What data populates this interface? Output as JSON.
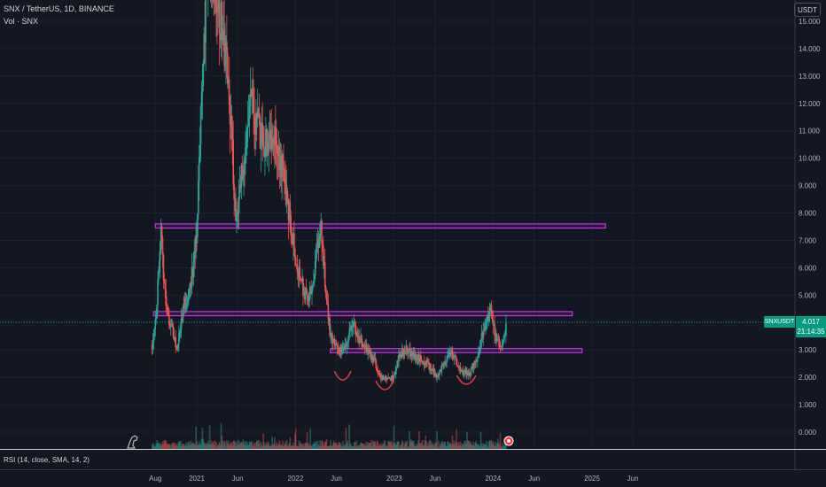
{
  "header": {
    "title": "SNX / TetherUS, 1D, BINANCE",
    "volume_label": "Vol · SNX",
    "currency": "USDT"
  },
  "price_badge": {
    "symbol": "SNXUSDT",
    "price": "4.017",
    "countdown": "21:14:35"
  },
  "rsi_label": "RSI (14, close, SMA, 14, 2)",
  "colors": {
    "background": "#131722",
    "up": "#26a69a",
    "down": "#ef5350",
    "zone": "#c930e8",
    "price_line": "#089981",
    "arc": "#f23645"
  },
  "chart_data": {
    "type": "candlestick",
    "y_axis": {
      "range": [
        -0.5,
        15.5
      ],
      "ticks": [
        "0.000",
        "1.000",
        "2.000",
        "3.000",
        "4.000",
        "5.000",
        "6.000",
        "7.000",
        "8.000",
        "9.000",
        "10.000",
        "11.000",
        "12.000",
        "13.000",
        "14.000",
        "15.000"
      ]
    },
    "x_axis": {
      "ticks": [
        "Aug",
        "2021",
        "Jun",
        "2022",
        "Jun",
        "2023",
        "Jun",
        "2024",
        "Jun",
        "2025",
        "Jun"
      ],
      "tick_dates": [
        "2020-08-01",
        "2021-01-01",
        "2021-06-01",
        "2022-01-01",
        "2022-06-01",
        "2023-01-01",
        "2023-06-01",
        "2024-01-01",
        "2024-06-01",
        "2025-01-01",
        "2025-06-01"
      ]
    },
    "price_path": [
      [
        "2020-07-20",
        3.2
      ],
      [
        "2020-08-05",
        4.4
      ],
      [
        "2020-08-20",
        7.4
      ],
      [
        "2020-09-10",
        4.5
      ],
      [
        "2020-10-01",
        3.8
      ],
      [
        "2020-10-20",
        3.0
      ],
      [
        "2020-11-10",
        4.4
      ],
      [
        "2020-12-10",
        5.5
      ],
      [
        "2021-01-01",
        7.0
      ],
      [
        "2021-01-15",
        11.5
      ],
      [
        "2021-02-10",
        17.0
      ],
      [
        "2021-03-01",
        16.5
      ],
      [
        "2021-04-01",
        15.0
      ],
      [
        "2021-04-20",
        13.5
      ],
      [
        "2021-05-10",
        11.0
      ],
      [
        "2021-05-25",
        7.5
      ],
      [
        "2021-06-10",
        9.0
      ],
      [
        "2021-07-01",
        10.5
      ],
      [
        "2021-07-20",
        12.0
      ],
      [
        "2021-08-20",
        11.0
      ],
      [
        "2021-09-10",
        10.5
      ],
      [
        "2021-10-10",
        11.0
      ],
      [
        "2021-11-05",
        10.0
      ],
      [
        "2021-12-01",
        8.5
      ],
      [
        "2022-01-01",
        6.5
      ],
      [
        "2022-01-20",
        5.5
      ],
      [
        "2022-02-20",
        4.7
      ],
      [
        "2022-03-20",
        6.5
      ],
      [
        "2022-04-05",
        7.5
      ],
      [
        "2022-04-20",
        5.5
      ],
      [
        "2022-05-10",
        3.5
      ],
      [
        "2022-06-10",
        2.9
      ],
      [
        "2022-07-01",
        3.1
      ],
      [
        "2022-08-01",
        4.0
      ],
      [
        "2022-08-20",
        3.5
      ],
      [
        "2022-09-20",
        3.0
      ],
      [
        "2022-10-20",
        2.6
      ],
      [
        "2022-11-10",
        2.0
      ],
      [
        "2022-12-15",
        1.9
      ],
      [
        "2023-01-01",
        2.1
      ],
      [
        "2023-01-20",
        2.8
      ],
      [
        "2023-02-10",
        3.0
      ],
      [
        "2023-03-01",
        2.9
      ],
      [
        "2023-04-01",
        2.7
      ],
      [
        "2023-05-01",
        2.5
      ],
      [
        "2023-06-10",
        2.0
      ],
      [
        "2023-07-01",
        2.5
      ],
      [
        "2023-08-01",
        3.0
      ],
      [
        "2023-08-20",
        2.5
      ],
      [
        "2023-09-10",
        2.2
      ],
      [
        "2023-10-05",
        2.1
      ],
      [
        "2023-11-01",
        2.6
      ],
      [
        "2023-11-20",
        3.5
      ],
      [
        "2023-12-10",
        4.0
      ],
      [
        "2023-12-25",
        4.5
      ],
      [
        "2024-01-10",
        3.5
      ],
      [
        "2024-01-25",
        3.2
      ],
      [
        "2024-02-10",
        3.4
      ],
      [
        "2024-02-20",
        4.0
      ]
    ],
    "annotations": {
      "zones": [
        {
          "start": "2020-08-01",
          "end": "2025-02-20",
          "top": 7.6,
          "bottom": 7.45
        },
        {
          "start": "2020-07-25",
          "end": "2024-10-20",
          "top": 4.4,
          "bottom": 4.25
        },
        {
          "start": "2022-05-10",
          "end": "2024-11-25",
          "top": 3.05,
          "bottom": 2.9
        }
      ],
      "current_price": 4.017,
      "arcs": [
        {
          "start": "2022-05-25",
          "end": "2022-07-25",
          "low": 1.9
        },
        {
          "start": "2022-10-25",
          "end": "2022-12-30",
          "low": 1.55
        },
        {
          "start": "2023-08-20",
          "end": "2023-10-30",
          "low": 1.75
        }
      ]
    }
  }
}
